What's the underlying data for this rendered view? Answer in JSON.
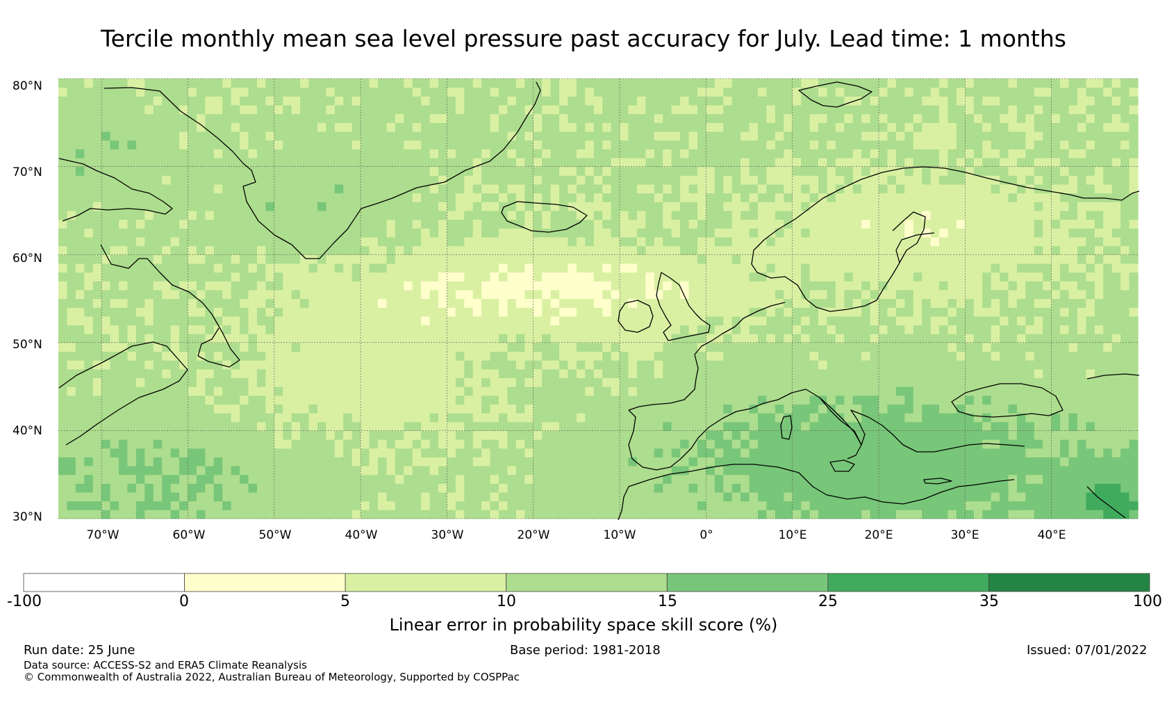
{
  "title": "Tercile monthly mean sea level pressure past accuracy for July. Lead time: 1 months",
  "map": {
    "lat_range": [
      30,
      80
    ],
    "lon_range": [
      -75,
      50
    ],
    "lat_ticks": [
      "80°N",
      "70°N",
      "60°N",
      "50°N",
      "40°N",
      "30°N"
    ],
    "lon_ticks": [
      "70°W",
      "60°W",
      "50°W",
      "40°W",
      "30°W",
      "20°W",
      "10°W",
      "0°",
      "10°E",
      "20°E",
      "30°E",
      "40°E"
    ],
    "gridlines": true
  },
  "colorbar": {
    "labels": [
      "-100",
      "0",
      "5",
      "10",
      "15",
      "25",
      "35",
      "100"
    ],
    "colors": [
      "#ffffff",
      "#ffffcc",
      "#d9f0a3",
      "#addd8e",
      "#78c679",
      "#41ab5d",
      "#238443"
    ],
    "title": "Linear error in probability space skill score (%)"
  },
  "footer": {
    "run_date": "Run date: 25 June",
    "base_period": "Base period: 1981-2018",
    "issued": "Issued: 07/01/2022",
    "data_source": "Data source: ACCESS-S2 and ERA5 Climate Reanalysis",
    "copyright": "© Commonwealth of Australia 2022, Australian Bureau of Meteorology, Supported by COSPPac"
  }
}
